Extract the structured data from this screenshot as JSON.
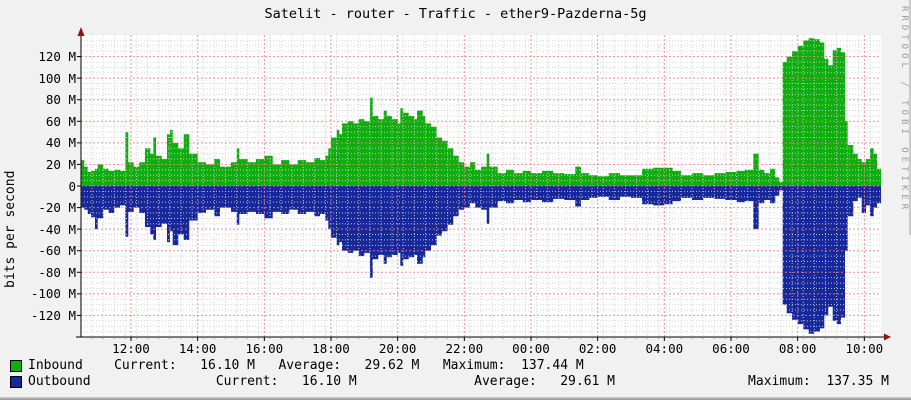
{
  "title": "Satelit - router - Traffic - ether9-Pazderna-5g",
  "y_axis_label": "bits per second",
  "watermark": "RRDTOOL / TOBI OETIKER",
  "colors": {
    "inbound": "#0fae0f",
    "outbound": "#16289c",
    "grid_major": "#f07f7f",
    "grid_minor": "#cfcfcf",
    "axis": "#000000",
    "arrow": "#8b1515",
    "canvas": "#ffffff",
    "background": "#f1f1f1",
    "watermark_color": "#9b9b9b"
  },
  "chart_data": {
    "type": "area",
    "title": "Satelit - router - Traffic - ether9-Pazderna-5g",
    "ylabel": "bits per second",
    "value_unit": "Mbit/s",
    "ylim": [
      -140,
      140
    ],
    "time_span_hours": 24,
    "axis_start_clock": "10:30",
    "grid": {
      "minor_y_step": 5,
      "major_y_step": 20,
      "minor_x_step_hours": 0.3333333,
      "major_x_step_hours": 2,
      "grid_on": true
    },
    "y_ticks": [
      {
        "v": 120,
        "label": "120 M"
      },
      {
        "v": 100,
        "label": "100 M"
      },
      {
        "v": 80,
        "label": "80 M"
      },
      {
        "v": 60,
        "label": "60 M"
      },
      {
        "v": 40,
        "label": "40 M"
      },
      {
        "v": 20,
        "label": "20 M"
      },
      {
        "v": 0,
        "label": "0"
      },
      {
        "v": -20,
        "label": "-20 M"
      },
      {
        "v": -40,
        "label": "-40 M"
      },
      {
        "v": -60,
        "label": "-60 M"
      },
      {
        "v": -80,
        "label": "-80 M"
      },
      {
        "v": -100,
        "label": "-100 M"
      },
      {
        "v": -120,
        "label": "-120 M"
      }
    ],
    "x_ticks": [
      {
        "t": 1.5,
        "label": "12:00"
      },
      {
        "t": 3.5,
        "label": "14:00"
      },
      {
        "t": 5.5,
        "label": "16:00"
      },
      {
        "t": 7.5,
        "label": "18:00"
      },
      {
        "t": 9.5,
        "label": "20:00"
      },
      {
        "t": 11.5,
        "label": "22:00"
      },
      {
        "t": 13.5,
        "label": "00:00"
      },
      {
        "t": 15.5,
        "label": "02:00"
      },
      {
        "t": 17.5,
        "label": "04:00"
      },
      {
        "t": 19.5,
        "label": "06:00"
      },
      {
        "t": 21.5,
        "label": "08:00"
      },
      {
        "t": 23.5,
        "label": "10:00"
      }
    ],
    "series": [
      {
        "name": "Inbound",
        "color": "#0fae0f",
        "direction": "positive"
      },
      {
        "name": "Outbound",
        "color": "#16289c",
        "direction": "negative"
      }
    ],
    "stats": {
      "inbound": {
        "current": "16.10 M",
        "average": "29.62 M",
        "maximum": "137.44 M"
      },
      "outbound": {
        "current": "16.10 M",
        "average": "29.61 M",
        "maximum": "137.35 M"
      }
    },
    "points": [
      [
        0.0,
        24,
        -20
      ],
      [
        0.1,
        18,
        -22
      ],
      [
        0.2,
        13,
        -26
      ],
      [
        0.3,
        14,
        -29
      ],
      [
        0.42,
        16,
        -40
      ],
      [
        0.5,
        20,
        -30
      ],
      [
        0.67,
        16,
        -22
      ],
      [
        0.83,
        14,
        -25
      ],
      [
        1.0,
        15,
        -20
      ],
      [
        1.17,
        14,
        -18
      ],
      [
        1.33,
        50,
        -47
      ],
      [
        1.42,
        22,
        -24
      ],
      [
        1.58,
        18,
        -20
      ],
      [
        1.75,
        22,
        -25
      ],
      [
        1.92,
        35,
        -38
      ],
      [
        2.08,
        30,
        -45
      ],
      [
        2.17,
        45,
        -50
      ],
      [
        2.25,
        28,
        -38
      ],
      [
        2.42,
        25,
        -35
      ],
      [
        2.58,
        48,
        -52
      ],
      [
        2.67,
        52,
        -42
      ],
      [
        2.75,
        40,
        -55
      ],
      [
        2.92,
        35,
        -45
      ],
      [
        3.08,
        48,
        -50
      ],
      [
        3.25,
        30,
        -32
      ],
      [
        3.5,
        22,
        -25
      ],
      [
        3.75,
        20,
        -22
      ],
      [
        4.0,
        25,
        -28
      ],
      [
        4.17,
        18,
        -20
      ],
      [
        4.5,
        22,
        -24
      ],
      [
        4.67,
        35,
        -36
      ],
      [
        4.75,
        25,
        -26
      ],
      [
        5.0,
        22,
        -24
      ],
      [
        5.25,
        25,
        -26
      ],
      [
        5.5,
        28,
        -30
      ],
      [
        5.75,
        20,
        -24
      ],
      [
        6.0,
        24,
        -26
      ],
      [
        6.25,
        20,
        -22
      ],
      [
        6.5,
        24,
        -26
      ],
      [
        6.75,
        22,
        -24
      ],
      [
        7.0,
        26,
        -28
      ],
      [
        7.17,
        24,
        -26
      ],
      [
        7.33,
        28,
        -32
      ],
      [
        7.42,
        35,
        -40
      ],
      [
        7.5,
        45,
        -48
      ],
      [
        7.67,
        52,
        -55
      ],
      [
        7.75,
        48,
        -52
      ],
      [
        7.83,
        58,
        -60
      ],
      [
        8.0,
        60,
        -62
      ],
      [
        8.17,
        58,
        -60
      ],
      [
        8.33,
        62,
        -65
      ],
      [
        8.5,
        60,
        -62
      ],
      [
        8.67,
        82,
        -85
      ],
      [
        8.75,
        65,
        -68
      ],
      [
        8.92,
        62,
        -64
      ],
      [
        9.08,
        70,
        -72
      ],
      [
        9.17,
        65,
        -66
      ],
      [
        9.33,
        62,
        -64
      ],
      [
        9.5,
        58,
        -62
      ],
      [
        9.58,
        72,
        -74
      ],
      [
        9.67,
        68,
        -68
      ],
      [
        9.83,
        65,
        -66
      ],
      [
        10.0,
        62,
        -64
      ],
      [
        10.08,
        70,
        -72
      ],
      [
        10.25,
        65,
        -66
      ],
      [
        10.33,
        58,
        -60
      ],
      [
        10.5,
        55,
        -55
      ],
      [
        10.67,
        45,
        -46
      ],
      [
        10.83,
        42,
        -42
      ],
      [
        11.0,
        35,
        -36
      ],
      [
        11.17,
        28,
        -28
      ],
      [
        11.33,
        22,
        -22
      ],
      [
        11.5,
        18,
        -20
      ],
      [
        11.67,
        22,
        -16
      ],
      [
        11.83,
        15,
        -20
      ],
      [
        12.0,
        18,
        -22
      ],
      [
        12.17,
        30,
        -35
      ],
      [
        12.25,
        18,
        -20
      ],
      [
        12.5,
        12,
        -14
      ],
      [
        12.75,
        15,
        -16
      ],
      [
        13.0,
        12,
        -13
      ],
      [
        13.25,
        14,
        -15
      ],
      [
        13.5,
        12,
        -13
      ],
      [
        13.83,
        14,
        -15
      ],
      [
        14.17,
        12,
        -12
      ],
      [
        14.5,
        11,
        -13
      ],
      [
        14.83,
        18,
        -19
      ],
      [
        15.0,
        12,
        -13
      ],
      [
        15.25,
        10,
        -11
      ],
      [
        15.5,
        9,
        -10
      ],
      [
        15.83,
        12,
        -13
      ],
      [
        16.17,
        10,
        -10
      ],
      [
        16.5,
        10,
        -11
      ],
      [
        16.83,
        16,
        -17
      ],
      [
        17.17,
        17,
        -18
      ],
      [
        17.5,
        17,
        -17
      ],
      [
        17.75,
        14,
        -14
      ],
      [
        18.0,
        10,
        -11
      ],
      [
        18.33,
        12,
        -13
      ],
      [
        18.67,
        10,
        -11
      ],
      [
        19.0,
        12,
        -12
      ],
      [
        19.33,
        13,
        -13
      ],
      [
        19.67,
        14,
        -15
      ],
      [
        19.92,
        15,
        -14
      ],
      [
        20.17,
        30,
        -40
      ],
      [
        20.33,
        15,
        -16
      ],
      [
        20.5,
        12,
        -13
      ],
      [
        20.67,
        16,
        -16
      ],
      [
        20.83,
        8,
        -9
      ],
      [
        20.95,
        4,
        -4
      ],
      [
        21.05,
        115,
        -110
      ],
      [
        21.17,
        120,
        -118
      ],
      [
        21.33,
        125,
        -124
      ],
      [
        21.5,
        130,
        -128
      ],
      [
        21.67,
        135,
        -133
      ],
      [
        21.83,
        137,
        -137
      ],
      [
        22.0,
        136,
        -135
      ],
      [
        22.17,
        133,
        -132
      ],
      [
        22.3,
        118,
        -120
      ],
      [
        22.42,
        112,
        -112
      ],
      [
        22.55,
        126,
        -125
      ],
      [
        22.67,
        128,
        -128
      ],
      [
        22.8,
        124,
        -122
      ],
      [
        22.92,
        60,
        -60
      ],
      [
        23.0,
        38,
        -28
      ],
      [
        23.17,
        30,
        -14
      ],
      [
        23.3,
        25,
        -11
      ],
      [
        23.42,
        22,
        -25
      ],
      [
        23.55,
        25,
        -18
      ],
      [
        23.67,
        35,
        -28
      ],
      [
        23.78,
        30,
        -20
      ],
      [
        23.88,
        16,
        -16
      ]
    ]
  },
  "legend": {
    "rows": [
      {
        "name": "inbound",
        "color": "#0fae0f",
        "text": "Inbound    Current:   16.10 M   Average:   29.62 M   Maximum:  137.44 M"
      },
      {
        "name": "outbound",
        "color": "#16289c",
        "text": "Outbound                Current:   16.10 M               Average:   29.61 M                 Maximum:  137.35 M"
      }
    ]
  }
}
